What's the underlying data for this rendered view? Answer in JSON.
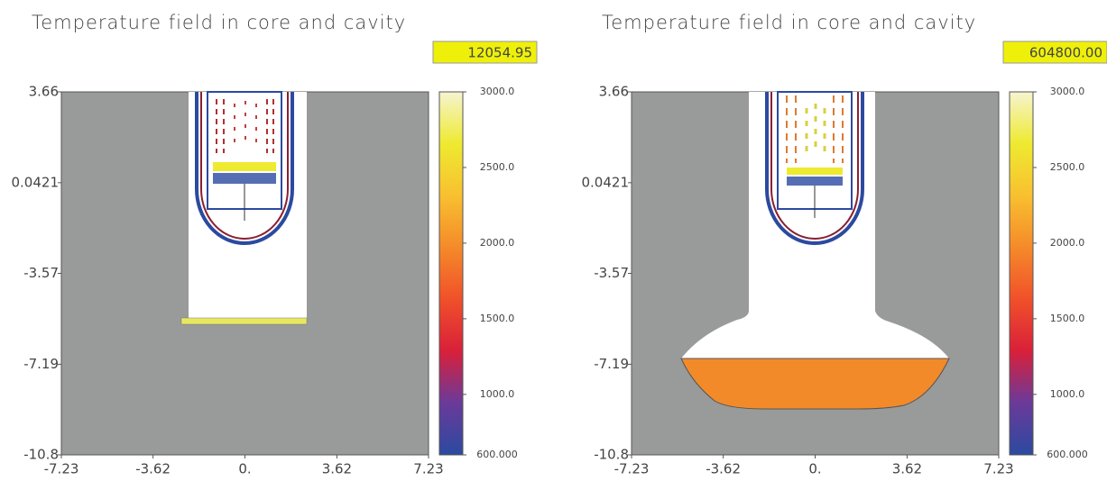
{
  "chart_data": [
    {
      "type": "field",
      "title": "Temperature field in core and cavity",
      "time_label": "12054.95",
      "xlim": [
        -7.23,
        7.23
      ],
      "ylim": [
        -10.8,
        3.66
      ],
      "xticks": [
        -7.23,
        -3.62,
        {
          "value": 0,
          "label": "0."
        },
        3.62,
        7.23
      ],
      "yticks": [
        3.66,
        0.0421,
        -3.57,
        -7.19,
        -10.8
      ],
      "colorbar_lim": [
        600,
        3000
      ],
      "colorbar_ticks": [
        {
          "value": 600,
          "label": "600.000"
        },
        {
          "value": 1000,
          "label": "1000.0"
        },
        {
          "value": 1500,
          "label": "1500.0"
        },
        {
          "value": 2000,
          "label": "2000.0"
        },
        {
          "value": 2500,
          "label": "2500.0"
        },
        {
          "value": 3000,
          "label": "3000.0"
        }
      ],
      "colormap": [
        "#2b4aa0",
        "#6a3a9a",
        "#d9203a",
        "#f0502a",
        "#f58a2a",
        "#f8c030",
        "#eeea30",
        "#f6f4d0"
      ]
    },
    {
      "type": "field",
      "title": "Temperature field in core and cavity",
      "time_label": "604800.00",
      "xlim": [
        -7.23,
        7.23
      ],
      "ylim": [
        -10.8,
        3.66
      ],
      "xticks": [
        -7.23,
        -3.62,
        {
          "value": 0,
          "label": "0."
        },
        3.62,
        7.23
      ],
      "yticks": [
        3.66,
        0.0421,
        -3.57,
        -7.19,
        -10.8
      ],
      "colorbar_lim": [
        600,
        3000
      ],
      "colorbar_ticks": [
        {
          "value": 600,
          "label": "600.000"
        },
        {
          "value": 1000,
          "label": "1000.0"
        },
        {
          "value": 1500,
          "label": "1500.0"
        },
        {
          "value": 2000,
          "label": "2000.0"
        },
        {
          "value": 2500,
          "label": "2500.0"
        },
        {
          "value": 3000,
          "label": "3000.0"
        }
      ],
      "colormap": [
        "#2b4aa0",
        "#6a3a9a",
        "#d9203a",
        "#f0502a",
        "#f58a2a",
        "#f8c030",
        "#eeea30",
        "#f6f4d0"
      ]
    }
  ]
}
